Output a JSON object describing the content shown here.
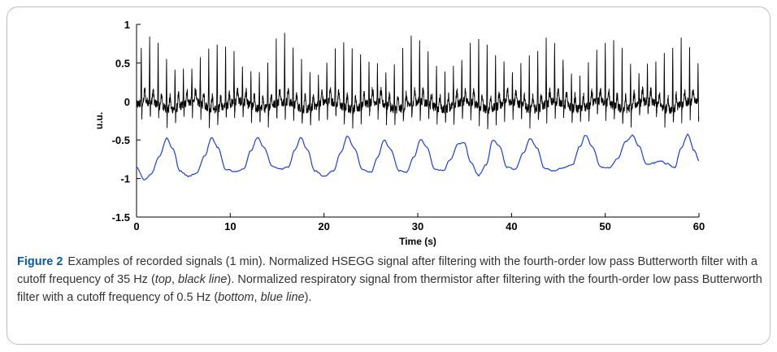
{
  "chart_data": {
    "type": "line",
    "xlabel": "Time (s)",
    "ylabel": "u.u.",
    "xlim": [
      0,
      60
    ],
    "ylim": [
      -1.5,
      1
    ],
    "x_ticks": [
      "0",
      "10",
      "20",
      "30",
      "40",
      "50",
      "60"
    ],
    "y_ticks": [
      "1",
      "0.5",
      "0",
      "-0.5",
      "-1",
      "-1.5"
    ],
    "grid": false,
    "series": [
      {
        "color": "#000000",
        "baseline": -0.05,
        "beats_s": [
          0.5,
          1.4,
          2.3,
          3.2,
          4.1,
          5.0,
          5.9,
          6.8,
          7.7,
          8.6,
          9.5,
          10.4,
          11.3,
          12.2,
          13.1,
          14.0,
          14.9,
          15.8,
          16.7,
          17.6,
          18.5,
          19.4,
          20.3,
          21.2,
          22.1,
          23.0,
          23.9,
          24.8,
          25.7,
          26.6,
          27.5,
          28.4,
          29.3,
          30.2,
          31.1,
          32.0,
          32.9,
          33.8,
          34.7,
          35.6,
          36.5,
          37.4,
          38.3,
          39.2,
          40.1,
          41.0,
          41.9,
          42.8,
          43.7,
          44.6,
          45.5,
          46.4,
          47.3,
          48.2,
          49.1,
          50.0,
          50.9,
          51.8,
          52.7,
          53.6,
          54.5,
          55.4,
          56.3,
          57.2,
          58.1,
          59.0,
          59.9
        ],
        "spike_peak": 0.85,
        "spike_trough": -0.4
      },
      {
        "color": "#1a3fe0",
        "x": [
          0,
          0.8,
          1.5,
          2.5,
          3.2,
          3.9,
          4.6,
          5.5,
          6.4,
          7.3,
          8.0,
          8.7,
          9.5,
          10.5,
          11.4,
          12.2,
          12.9,
          13.6,
          14.5,
          15.4,
          16.2,
          16.9,
          17.5,
          18.2,
          19.0,
          20.0,
          21.0,
          21.8,
          22.5,
          23.2,
          24.1,
          25.0,
          25.7,
          26.4,
          27.1,
          28.0,
          28.8,
          29.6,
          30.3,
          31.0,
          31.8,
          32.7,
          33.5,
          34.3,
          35.0,
          35.6,
          36.5,
          37.3,
          38.0,
          38.7,
          39.5,
          40.4,
          41.3,
          42.0,
          42.7,
          43.5,
          44.5,
          45.5,
          46.5,
          47.3,
          47.9,
          48.6,
          49.5,
          50.4,
          51.3,
          52.2,
          52.9,
          53.6,
          54.4,
          55.2,
          55.8,
          56.6,
          57.4,
          58.1,
          58.8,
          59.5,
          60
        ],
        "y": [
          -0.85,
          -1.02,
          -0.95,
          -0.7,
          -0.48,
          -0.62,
          -0.9,
          -0.97,
          -0.93,
          -0.7,
          -0.47,
          -0.6,
          -0.88,
          -0.91,
          -0.88,
          -0.64,
          -0.47,
          -0.6,
          -0.84,
          -0.88,
          -0.85,
          -0.63,
          -0.47,
          -0.62,
          -0.9,
          -0.97,
          -0.9,
          -0.66,
          -0.45,
          -0.6,
          -0.88,
          -0.92,
          -0.73,
          -0.5,
          -0.62,
          -0.9,
          -0.92,
          -0.72,
          -0.49,
          -0.6,
          -0.88,
          -0.9,
          -0.75,
          -0.55,
          -0.54,
          -0.78,
          -0.96,
          -0.82,
          -0.5,
          -0.58,
          -0.85,
          -0.88,
          -0.66,
          -0.48,
          -0.6,
          -0.87,
          -0.9,
          -0.86,
          -0.82,
          -0.58,
          -0.44,
          -0.58,
          -0.85,
          -0.86,
          -0.75,
          -0.52,
          -0.44,
          -0.58,
          -0.82,
          -0.8,
          -0.77,
          -0.81,
          -0.86,
          -0.6,
          -0.43,
          -0.64,
          -0.77
        ]
      }
    ]
  },
  "caption": {
    "figure_number": "Figure 2",
    "part1": "Examples of recorded signals (1 min). Normalized HSEGG signal after filtering with the fourth-order low pass Butterworth filter with a cutoff frequency of 35 Hz (",
    "top": "top",
    "sep1": ", ",
    "black_line": "black line",
    "part2": "). Normalized respiratory signal from thermistor after filtering with the fourth-order low pass Butterworth filter with a cutoff frequency of 0.5 Hz (",
    "bottom": "bottom",
    "sep2": ", ",
    "blue_line": "blue line",
    "part3": ")."
  }
}
